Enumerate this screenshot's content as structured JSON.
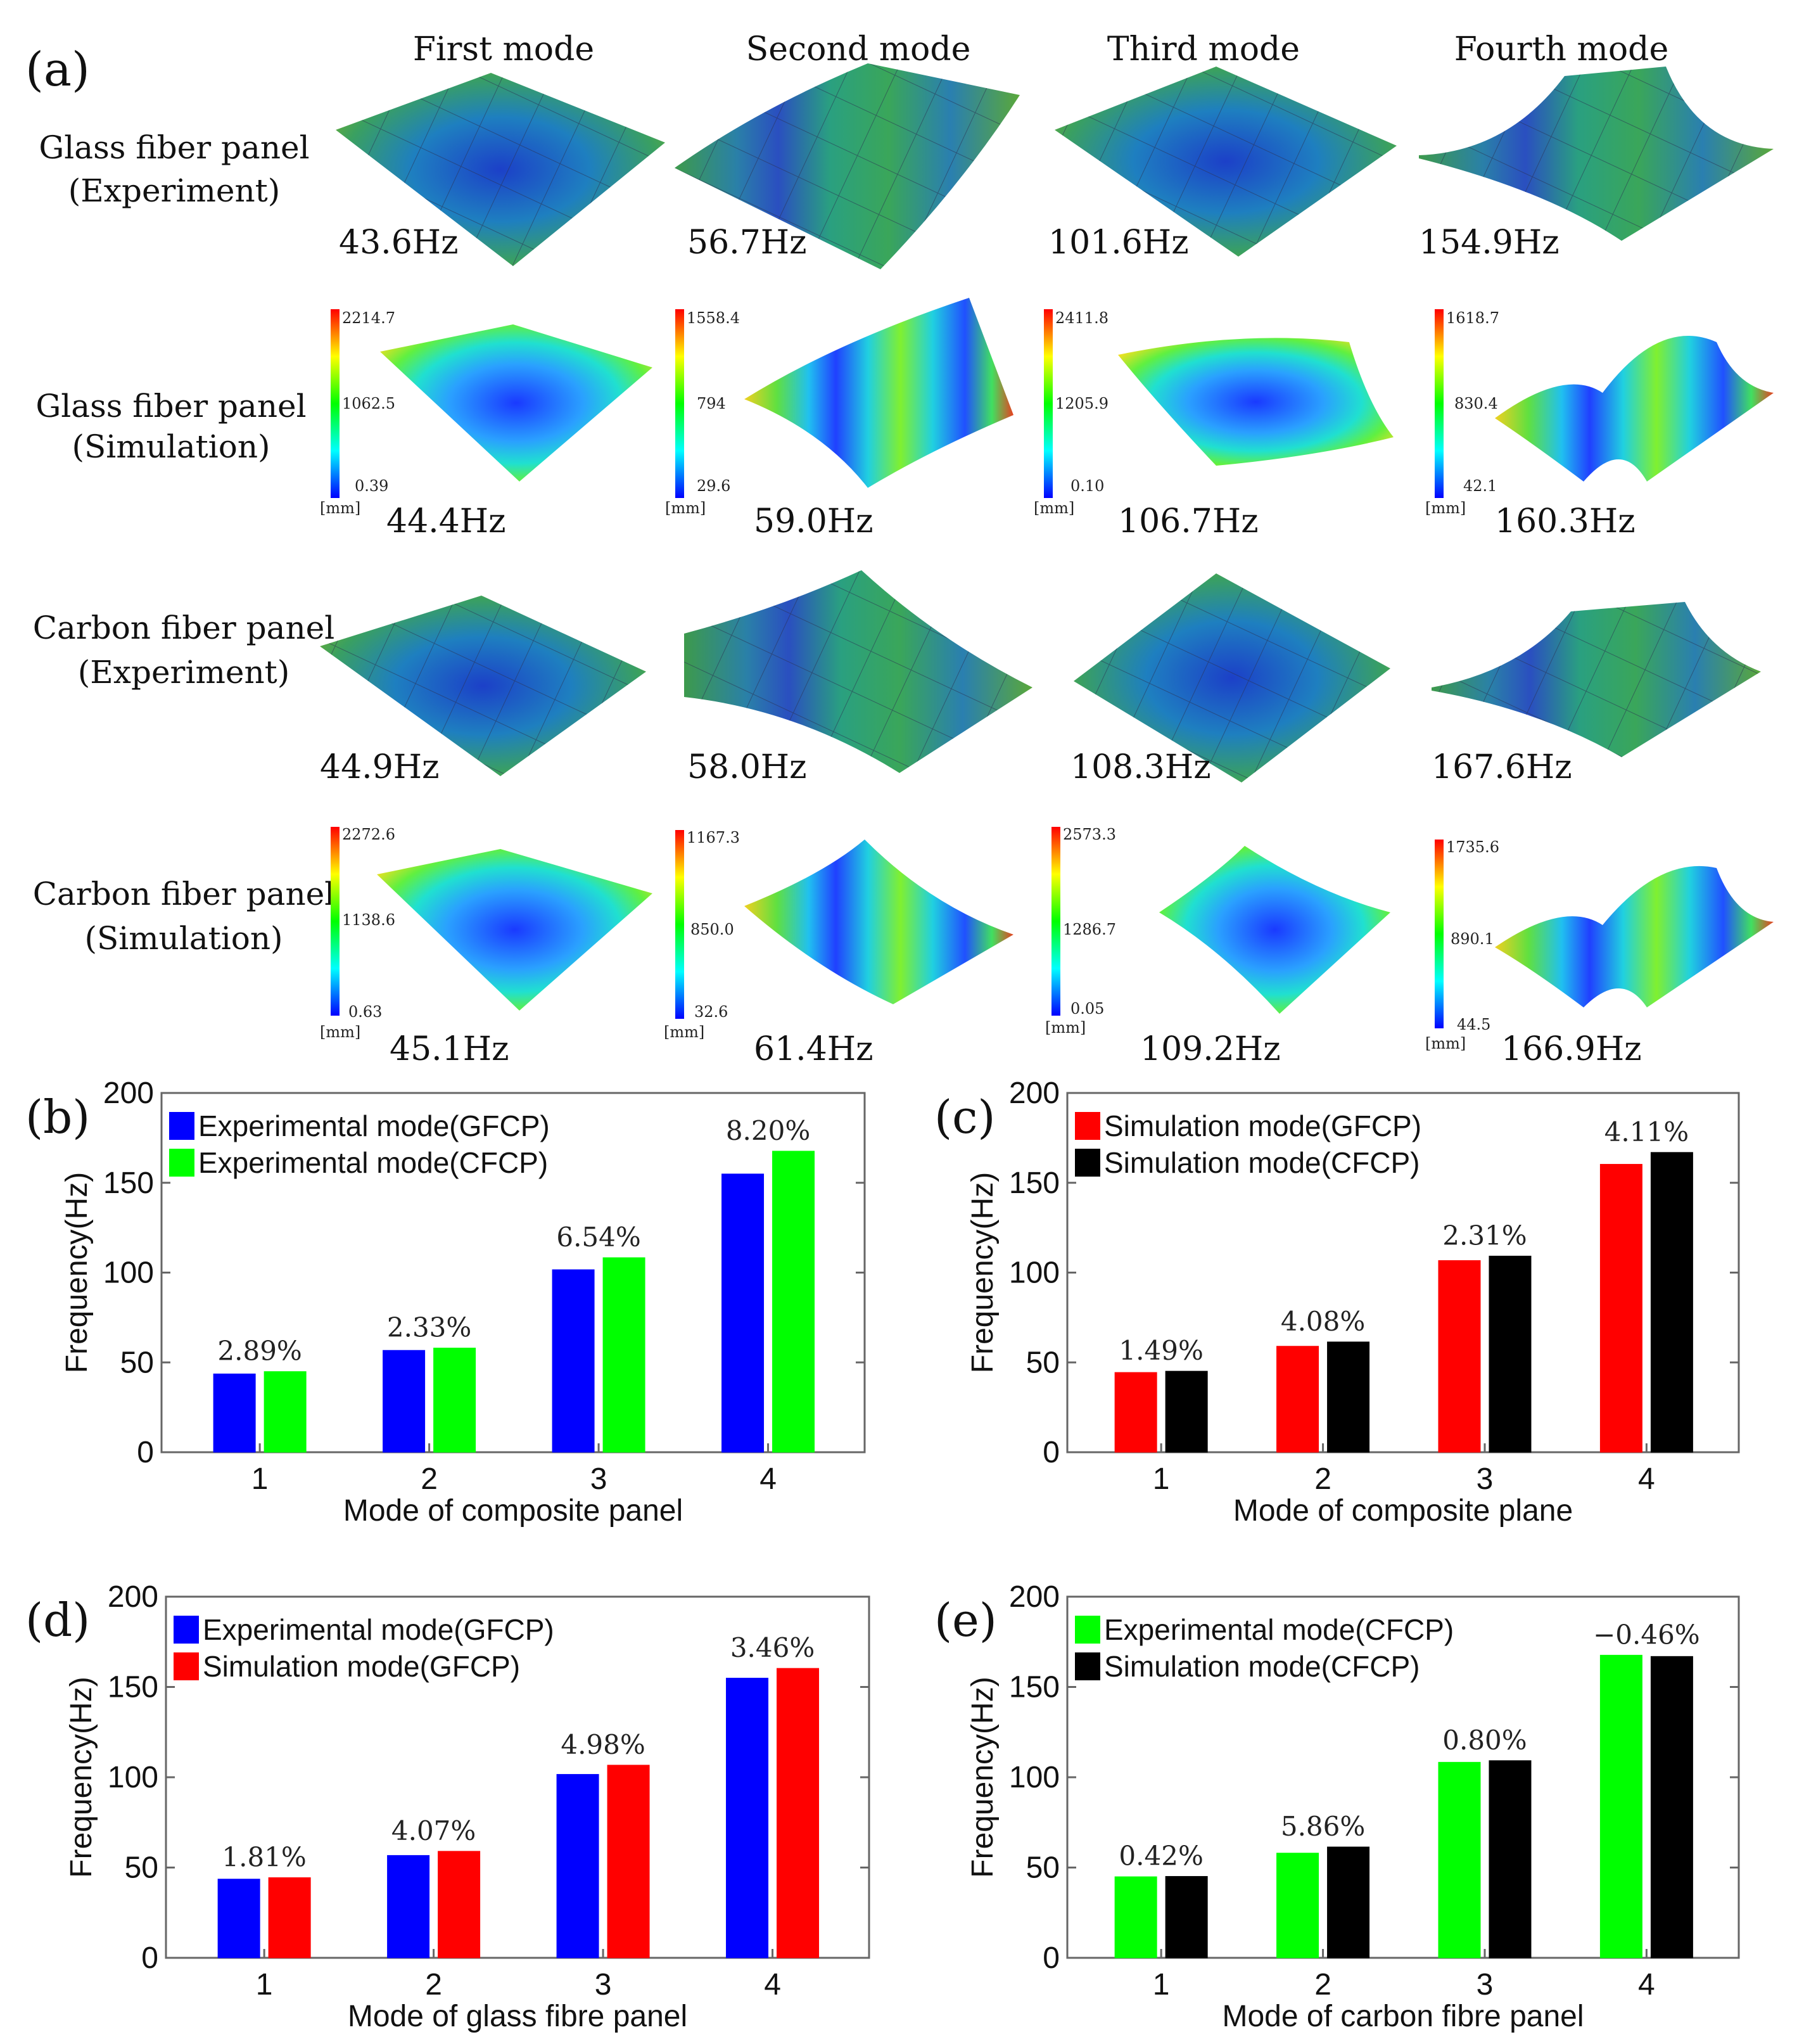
{
  "part_a": {
    "letter": "(a)",
    "columns": [
      "First mode",
      "Second mode",
      "Third mode",
      "Fourth mode"
    ],
    "row_labels": [
      [
        "Glass fiber panel",
        "(Experiment)"
      ],
      [
        "Glass fiber panel",
        "(Simulation)"
      ],
      [
        "Carbon fiber panel",
        "(Experiment)"
      ],
      [
        "Carbon fiber panel",
        "(Simulation)"
      ]
    ],
    "frequencies": [
      [
        "43.6Hz",
        "56.7Hz",
        "101.6Hz",
        "154.9Hz"
      ],
      [
        "44.4Hz",
        "59.0Hz",
        "106.7Hz",
        "160.3Hz"
      ],
      [
        "44.9Hz",
        "58.0Hz",
        "108.3Hz",
        "167.6Hz"
      ],
      [
        "45.1Hz",
        "61.4Hz",
        "109.2Hz",
        "166.9Hz"
      ]
    ],
    "colorbars": [
      [
        [
          "2214.7",
          "1062.5",
          "0.39"
        ],
        [
          "1558.4",
          "794",
          "29.6"
        ],
        [
          "2411.8",
          "1205.9",
          "0.10"
        ],
        [
          "1618.7",
          "830.4",
          "42.1"
        ]
      ],
      [
        [
          "2272.6",
          "1138.6",
          "0.63"
        ],
        [
          "1167.3",
          "850.0",
          "32.6"
        ],
        [
          "2573.3",
          "1286.7",
          "0.05"
        ],
        [
          "1735.6",
          "890.1",
          "44.5"
        ]
      ]
    ],
    "unit": "[mm]"
  },
  "colors": {
    "blue": "#0000ff",
    "green": "#00ff00",
    "red": "#ff0000",
    "black": "#000000"
  },
  "chart_data": [
    {
      "letter": "(b)",
      "type": "bar",
      "categories": [
        "1",
        "2",
        "3",
        "4"
      ],
      "series": [
        {
          "name": "Experimental mode(GFCP)",
          "values": [
            43.6,
            56.7,
            101.6,
            154.9
          ],
          "color": "#0000ff"
        },
        {
          "name": "Experimental mode(CFCP)",
          "values": [
            44.9,
            58.0,
            108.3,
            167.6
          ],
          "color": "#00ff00"
        }
      ],
      "annotations": [
        "2.89%",
        "2.33%",
        "6.54%",
        "8.20%"
      ],
      "xlabel": "Mode of composite panel",
      "ylabel": "Frequency(Hz)",
      "ylim": [
        0,
        200
      ],
      "yticks": [
        0,
        50,
        100,
        150,
        200
      ]
    },
    {
      "letter": "(c)",
      "type": "bar",
      "categories": [
        "1",
        "2",
        "3",
        "4"
      ],
      "series": [
        {
          "name": "Simulation mode(GFCP)",
          "values": [
            44.4,
            59.0,
            106.7,
            160.3
          ],
          "color": "#ff0000"
        },
        {
          "name": "Simulation mode(CFCP)",
          "values": [
            45.1,
            61.4,
            109.2,
            166.9
          ],
          "color": "#000000"
        }
      ],
      "annotations": [
        "1.49%",
        "4.08%",
        "2.31%",
        "4.11%"
      ],
      "xlabel": "Mode of composite plane",
      "ylabel": "Frequency(Hz)",
      "ylim": [
        0,
        200
      ],
      "yticks": [
        0,
        50,
        100,
        150,
        200
      ]
    },
    {
      "letter": "(d)",
      "type": "bar",
      "categories": [
        "1",
        "2",
        "3",
        "4"
      ],
      "series": [
        {
          "name": "Experimental mode(GFCP)",
          "values": [
            43.6,
            56.7,
            101.6,
            154.9
          ],
          "color": "#0000ff"
        },
        {
          "name": "Simulation mode(GFCP)",
          "values": [
            44.4,
            59.0,
            106.7,
            160.3
          ],
          "color": "#ff0000"
        }
      ],
      "annotations": [
        "1.81%",
        "4.07%",
        "4.98%",
        "3.46%"
      ],
      "xlabel": "Mode  of glass fibre panel",
      "ylabel": "Frequency(Hz)",
      "ylim": [
        0,
        200
      ],
      "yticks": [
        0,
        50,
        100,
        150,
        200
      ]
    },
    {
      "letter": "(e)",
      "type": "bar",
      "categories": [
        "1",
        "2",
        "3",
        "4"
      ],
      "series": [
        {
          "name": "Experimental mode(CFCP)",
          "values": [
            44.9,
            58.0,
            108.3,
            167.6
          ],
          "color": "#00ff00"
        },
        {
          "name": "Simulation mode(CFCP)",
          "values": [
            45.1,
            61.4,
            109.2,
            166.9
          ],
          "color": "#000000"
        }
      ],
      "annotations": [
        "0.42%",
        "5.86%",
        "0.80%",
        "−0.46%"
      ],
      "xlabel": "Mode  of carbon fibre panel",
      "ylabel": "Frequency(Hz)",
      "ylim": [
        0,
        200
      ],
      "yticks": [
        0,
        50,
        100,
        150,
        200
      ]
    }
  ]
}
